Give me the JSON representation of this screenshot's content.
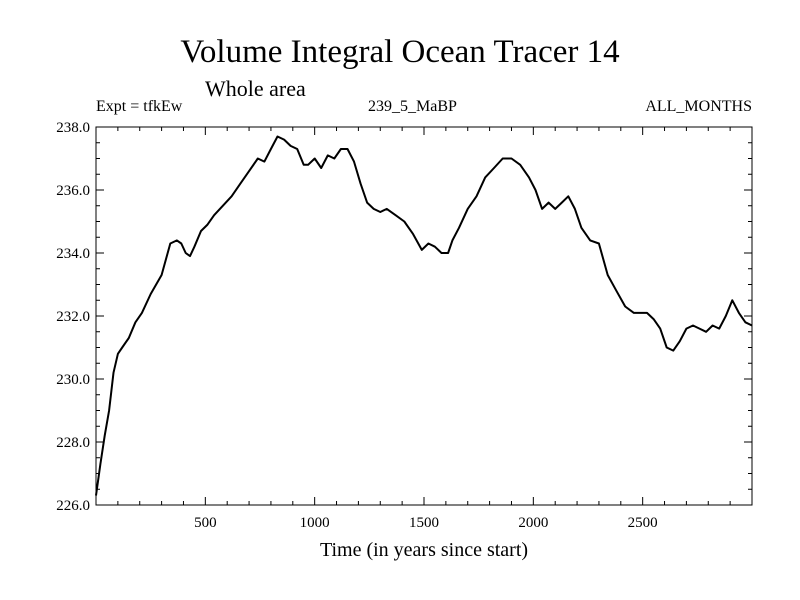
{
  "chart_data": {
    "type": "line",
    "title": "Volume Integral Ocean Tracer 14",
    "subtitle": "Whole area",
    "annotations": {
      "left": "Expt = tfkEw",
      "center": "239_5_MaBP",
      "right": "ALL_MONTHS"
    },
    "xlabel": "Time (in years since start)",
    "ylabel": "",
    "xlim": [
      0,
      3000
    ],
    "ylim": [
      226.0,
      238.0
    ],
    "x_ticks": [
      500,
      1000,
      1500,
      2000,
      2500
    ],
    "x_tick_labels": [
      "500",
      "1000",
      "1500",
      "2000",
      "2500"
    ],
    "y_ticks": [
      226.0,
      228.0,
      230.0,
      232.0,
      234.0,
      236.0,
      238.0
    ],
    "y_tick_labels": [
      "226.0",
      "228.0",
      "230.0",
      "232.0",
      "234.0",
      "236.0",
      "238.0"
    ],
    "grid": false,
    "legend": "none",
    "line_color": "#000000",
    "series": [
      {
        "x": [
          0,
          20,
          40,
          60,
          80,
          100,
          120,
          150,
          180,
          210,
          250,
          300,
          340,
          370,
          390,
          410,
          430,
          450,
          480,
          510,
          540,
          580,
          620,
          660,
          700,
          740,
          770,
          800,
          830,
          860,
          890,
          920,
          950,
          970,
          1000,
          1030,
          1060,
          1090,
          1120,
          1150,
          1180,
          1210,
          1240,
          1270,
          1300,
          1330,
          1370,
          1410,
          1450,
          1490,
          1520,
          1550,
          1580,
          1610,
          1630,
          1660,
          1700,
          1740,
          1780,
          1820,
          1860,
          1900,
          1940,
          1980,
          2010,
          2040,
          2070,
          2100,
          2130,
          2160,
          2190,
          2220,
          2260,
          2300,
          2340,
          2380,
          2420,
          2460,
          2490,
          2520,
          2550,
          2580,
          2610,
          2640,
          2670,
          2700,
          2730,
          2760,
          2790,
          2820,
          2850,
          2880,
          2910,
          2940,
          2970,
          3000
        ],
        "y": [
          226.3,
          227.3,
          228.2,
          229.0,
          230.2,
          230.8,
          231.0,
          231.3,
          231.8,
          232.1,
          232.7,
          233.3,
          234.3,
          234.4,
          234.3,
          234.0,
          233.9,
          234.2,
          234.7,
          234.9,
          235.2,
          235.5,
          235.8,
          236.2,
          236.6,
          237.0,
          236.9,
          237.3,
          237.7,
          237.6,
          237.4,
          237.3,
          236.8,
          236.8,
          237.0,
          236.7,
          237.1,
          237.0,
          237.3,
          237.3,
          236.9,
          236.2,
          235.6,
          235.4,
          235.3,
          235.4,
          235.2,
          235.0,
          234.6,
          234.1,
          234.3,
          234.2,
          234.0,
          234.0,
          234.4,
          234.8,
          235.4,
          235.8,
          236.4,
          236.7,
          237.0,
          237.0,
          236.8,
          236.4,
          236.0,
          235.4,
          235.6,
          235.4,
          235.6,
          235.8,
          235.4,
          234.8,
          234.4,
          234.3,
          233.3,
          232.8,
          232.3,
          232.1,
          232.1,
          232.1,
          231.9,
          231.6,
          231.0,
          230.9,
          231.2,
          231.6,
          231.7,
          231.6,
          231.5,
          231.7,
          231.6,
          232.0,
          232.5,
          232.1,
          231.8,
          231.7
        ]
      }
    ]
  }
}
